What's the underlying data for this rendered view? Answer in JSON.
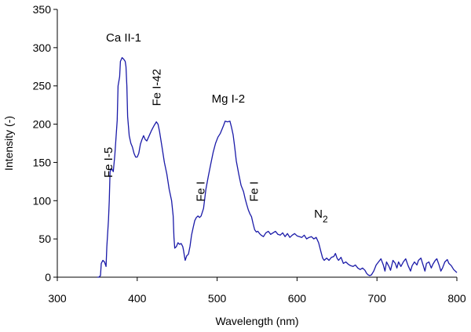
{
  "chart_data": {
    "type": "line",
    "title": "",
    "xlabel": "Wavelength (nm)",
    "ylabel": "Intensity (-)",
    "xlim": [
      300,
      800
    ],
    "ylim": [
      0,
      350
    ],
    "x_ticks": [
      300,
      400,
      500,
      600,
      700,
      800
    ],
    "y_ticks": [
      0,
      50,
      100,
      150,
      200,
      250,
      300,
      350
    ],
    "grid": false,
    "legend": "none",
    "line_color": "#1a1aa8",
    "series": [
      {
        "points": [
          [
            350,
            0
          ],
          [
            352,
            0
          ],
          [
            354,
            2
          ],
          [
            355,
            18
          ],
          [
            357,
            22
          ],
          [
            359,
            20
          ],
          [
            361,
            14
          ],
          [
            362,
            40
          ],
          [
            364,
            75
          ],
          [
            365,
            100
          ],
          [
            366,
            138
          ],
          [
            368,
            142
          ],
          [
            370,
            138
          ],
          [
            372,
            160
          ],
          [
            373,
            175
          ],
          [
            375,
            205
          ],
          [
            376,
            250
          ],
          [
            378,
            262
          ],
          [
            379,
            282
          ],
          [
            381,
            287
          ],
          [
            383,
            285
          ],
          [
            385,
            282
          ],
          [
            386,
            275
          ],
          [
            387,
            250
          ],
          [
            388,
            210
          ],
          [
            390,
            185
          ],
          [
            392,
            175
          ],
          [
            394,
            170
          ],
          [
            396,
            162
          ],
          [
            398,
            157
          ],
          [
            400,
            157
          ],
          [
            402,
            162
          ],
          [
            404,
            174
          ],
          [
            406,
            180
          ],
          [
            408,
            185
          ],
          [
            410,
            180
          ],
          [
            412,
            178
          ],
          [
            415,
            185
          ],
          [
            418,
            192
          ],
          [
            421,
            198
          ],
          [
            424,
            203
          ],
          [
            426,
            200
          ],
          [
            428,
            190
          ],
          [
            431,
            170
          ],
          [
            434,
            150
          ],
          [
            437,
            135
          ],
          [
            440,
            115
          ],
          [
            443,
            100
          ],
          [
            445,
            80
          ],
          [
            446,
            52
          ],
          [
            447,
            38
          ],
          [
            449,
            40
          ],
          [
            451,
            45
          ],
          [
            453,
            43
          ],
          [
            455,
            44
          ],
          [
            457,
            40
          ],
          [
            458,
            35
          ],
          [
            459,
            28
          ],
          [
            460,
            22
          ],
          [
            462,
            28
          ],
          [
            464,
            30
          ],
          [
            466,
            40
          ],
          [
            468,
            55
          ],
          [
            470,
            65
          ],
          [
            472,
            74
          ],
          [
            474,
            78
          ],
          [
            476,
            80
          ],
          [
            478,
            78
          ],
          [
            480,
            80
          ],
          [
            483,
            90
          ],
          [
            486,
            115
          ],
          [
            489,
            132
          ],
          [
            492,
            148
          ],
          [
            495,
            163
          ],
          [
            498,
            175
          ],
          [
            501,
            183
          ],
          [
            504,
            188
          ],
          [
            506,
            193
          ],
          [
            508,
            198
          ],
          [
            510,
            204
          ],
          [
            513,
            203
          ],
          [
            516,
            204
          ],
          [
            518,
            196
          ],
          [
            520,
            186
          ],
          [
            522,
            170
          ],
          [
            524,
            152
          ],
          [
            527,
            135
          ],
          [
            530,
            120
          ],
          [
            533,
            112
          ],
          [
            535,
            103
          ],
          [
            537,
            95
          ],
          [
            539,
            88
          ],
          [
            541,
            83
          ],
          [
            543,
            79
          ],
          [
            545,
            70
          ],
          [
            547,
            62
          ],
          [
            549,
            59
          ],
          [
            551,
            60
          ],
          [
            553,
            57
          ],
          [
            555,
            55
          ],
          [
            558,
            53
          ],
          [
            561,
            58
          ],
          [
            564,
            60
          ],
          [
            567,
            56
          ],
          [
            570,
            58
          ],
          [
            573,
            60
          ],
          [
            576,
            56
          ],
          [
            579,
            55
          ],
          [
            582,
            58
          ],
          [
            585,
            53
          ],
          [
            588,
            57
          ],
          [
            591,
            52
          ],
          [
            594,
            55
          ],
          [
            597,
            57
          ],
          [
            600,
            54
          ],
          [
            603,
            53
          ],
          [
            606,
            52
          ],
          [
            609,
            55
          ],
          [
            612,
            50
          ],
          [
            615,
            52
          ],
          [
            618,
            53
          ],
          [
            621,
            50
          ],
          [
            624,
            52
          ],
          [
            627,
            45
          ],
          [
            630,
            33
          ],
          [
            632,
            25
          ],
          [
            634,
            22
          ],
          [
            637,
            25
          ],
          [
            640,
            22
          ],
          [
            643,
            26
          ],
          [
            646,
            27
          ],
          [
            648,
            31
          ],
          [
            650,
            25
          ],
          [
            652,
            22
          ],
          [
            655,
            26
          ],
          [
            658,
            18
          ],
          [
            661,
            20
          ],
          [
            664,
            17
          ],
          [
            667,
            15
          ],
          [
            670,
            14
          ],
          [
            673,
            16
          ],
          [
            676,
            12
          ],
          [
            679,
            10
          ],
          [
            682,
            12
          ],
          [
            685,
            9
          ],
          [
            687,
            5
          ],
          [
            689,
            3
          ],
          [
            691,
            2
          ],
          [
            693,
            3
          ],
          [
            696,
            8
          ],
          [
            699,
            16
          ],
          [
            702,
            20
          ],
          [
            705,
            24
          ],
          [
            708,
            16
          ],
          [
            710,
            8
          ],
          [
            712,
            20
          ],
          [
            715,
            14
          ],
          [
            717,
            9
          ],
          [
            720,
            22
          ],
          [
            723,
            18
          ],
          [
            725,
            12
          ],
          [
            727,
            20
          ],
          [
            730,
            14
          ],
          [
            733,
            20
          ],
          [
            736,
            24
          ],
          [
            739,
            15
          ],
          [
            742,
            8
          ],
          [
            744,
            15
          ],
          [
            747,
            20
          ],
          [
            750,
            16
          ],
          [
            752,
            22
          ],
          [
            755,
            25
          ],
          [
            758,
            15
          ],
          [
            760,
            8
          ],
          [
            762,
            18
          ],
          [
            765,
            20
          ],
          [
            768,
            12
          ],
          [
            770,
            17
          ],
          [
            773,
            22
          ],
          [
            775,
            24
          ],
          [
            778,
            15
          ],
          [
            780,
            8
          ],
          [
            782,
            12
          ],
          [
            785,
            20
          ],
          [
            788,
            23
          ],
          [
            790,
            18
          ],
          [
            793,
            15
          ],
          [
            796,
            10
          ],
          [
            798,
            8
          ],
          [
            800,
            6
          ]
        ]
      }
    ],
    "annotations": [
      {
        "text": "Ca II-1",
        "x": 383,
        "y": 308,
        "rotate": false,
        "subscript": ""
      },
      {
        "text": "Fe I-42",
        "x": 429,
        "y": 248,
        "rotate": true,
        "subscript": ""
      },
      {
        "text": "Fe I-5",
        "x": 369,
        "y": 150,
        "rotate": true,
        "subscript": ""
      },
      {
        "text": "Mg I-2",
        "x": 514,
        "y": 228,
        "rotate": false,
        "subscript": ""
      },
      {
        "text": "Fe I",
        "x": 484,
        "y": 112,
        "rotate": true,
        "subscript": ""
      },
      {
        "text": "Fe I",
        "x": 551,
        "y": 112,
        "rotate": true,
        "subscript": ""
      },
      {
        "text": "N",
        "x": 630,
        "y": 78,
        "rotate": false,
        "subscript": "2"
      }
    ]
  }
}
